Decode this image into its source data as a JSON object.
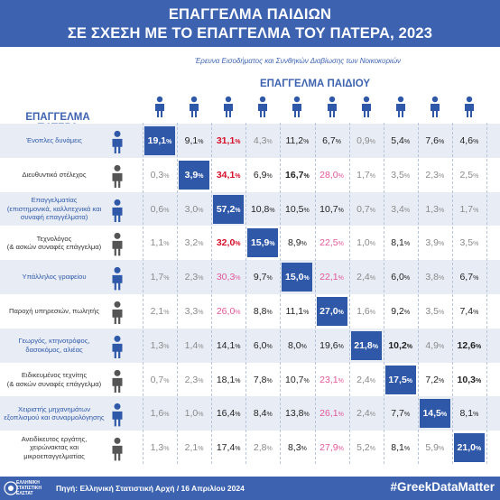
{
  "title": {
    "line1": "ΕΠΑΓΓΕΛΜΑ ΠΑΙΔΙΩΝ",
    "line2": "ΣΕ ΣΧΕΣΗ ΜΕ ΤΟ ΕΠΑΓΓΕΛΜΑ ΤΟΥ ΠΑΤΕΡΑ, 2023"
  },
  "subtitle": "Έρευνα Εισοδήματος και Συνθηκών Διαβίωσης των Νοικοκυριών",
  "column_header": "ΕΠΑΓΓΕΛΜΑ ΠΑΙΔΙΟΥ",
  "row_header": "ΕΠΑΓΓΕΛΜΑ ΠΑΤΕΡΑ",
  "pct_sign": "%",
  "footer": {
    "logo_line1": "ΕΛΛΗΝΙΚΗ",
    "logo_line2": "ΣΤΑΤΙΣΤΙΚΗ",
    "logo_line3": "ΕΛΣΤΑΤ",
    "source": "Πηγή: Ελληνική Στατιστική Αρχή  /  16 Απριλίου 2024",
    "hashtag": "#GreekDataMatter"
  },
  "colors": {
    "header_blue": "#3d63b0",
    "diagonal_blue": "#2f58a8",
    "pink": "#e2579a",
    "red": "#d6102a",
    "gray": "#8a8a8a",
    "band": "#e8edf5"
  },
  "column_icons": [
    "soldier-icon",
    "manager-icon",
    "professional-icon",
    "technician-icon",
    "clerk-icon",
    "service-worker-icon",
    "farmer-icon",
    "craft-worker-icon",
    "machine-operator-icon",
    "laborer-icon"
  ],
  "rows": [
    {
      "label": "Ένοπλες δυνάμεις",
      "sub": "",
      "blue": true,
      "icon": "soldier-icon"
    },
    {
      "label": "Διευθυντικό στέλεχος",
      "sub": "",
      "blue": false,
      "icon": "manager-icon"
    },
    {
      "label": "Επαγγελματίας",
      "sub": "(επιστημονικά, καλλιτεχνικά και συναφή επαγγέλματα)",
      "blue": true,
      "icon": "professional-icon"
    },
    {
      "label": "Τεχνολόγος",
      "sub": "(& ασκών συναφές επάγγελμα)",
      "blue": false,
      "icon": "technician-icon"
    },
    {
      "label": "Υπάλληλος γραφείου",
      "sub": "",
      "blue": true,
      "icon": "clerk-icon"
    },
    {
      "label": "Παροχή υπηρεσιών, πωλητής",
      "sub": "",
      "blue": false,
      "icon": "service-worker-icon"
    },
    {
      "label": "Γεωργός, κτηνοτρόφος, δασοκόμος, αλιέας",
      "sub": "",
      "blue": true,
      "icon": "farmer-icon"
    },
    {
      "label": "Ειδικευμένος τεχνίτης",
      "sub": "(& ασκών συναφές επάγγελμα)",
      "blue": false,
      "icon": "craft-worker-icon"
    },
    {
      "label": "Χειριστής μηχανημάτων εξοπλισμού και συναρμολόγησης",
      "sub": "",
      "blue": true,
      "icon": "machine-operator-icon"
    },
    {
      "label": "Ανειδίκευτος εργάτης, χειρώνακτας και μικροεπαγγελματίας",
      "sub": "",
      "blue": false,
      "icon": "laborer-icon"
    }
  ],
  "chart_data": {
    "type": "heatmap",
    "title": "ΕΠΑΓΓΕΛΜΑ ΠΑΙΔΙΩΝ ΣΕ ΣΧΕΣΗ ΜΕ ΤΟ ΕΠΑΓΓΕΛΜΑ ΤΟΥ ΠΑΤΕΡΑ, 2023",
    "xlabel": "ΕΠΑΓΓΕΛΜΑ ΠΑΙΔΙΟΥ",
    "ylabel": "ΕΠΑΓΓΕΛΜΑ ΠΑΤΕΡΑ",
    "unit": "%",
    "values": [
      [
        "19,1",
        "9,1",
        "31,1",
        "4,3",
        "11,2",
        "6,7",
        "0,9",
        "5,4",
        "7,6",
        "4,6"
      ],
      [
        "0,3",
        "3,9",
        "34,1",
        "6,9",
        "16,7",
        "28,0",
        "1,7",
        "3,5",
        "2,3",
        "2,5"
      ],
      [
        "0,6",
        "3,0",
        "57,2",
        "10,8",
        "10,5",
        "10,7",
        "0,7",
        "3,4",
        "1,3",
        "1,7"
      ],
      [
        "1,1",
        "3,2",
        "32,0",
        "15,9",
        "8,9",
        "22,5",
        "1,0",
        "8,1",
        "3,9",
        "3,5"
      ],
      [
        "1,7",
        "2,3",
        "30,3",
        "9,7",
        "15,0",
        "22,1",
        "2,4",
        "6,0",
        "3,8",
        "6,7"
      ],
      [
        "2,1",
        "3,3",
        "26,0",
        "8,8",
        "11,1",
        "27,0",
        "1,6",
        "9,2",
        "3,5",
        "7,4"
      ],
      [
        "1,3",
        "1,4",
        "14,1",
        "6,0",
        "8,0",
        "19,6",
        "21,8",
        "10,2",
        "4,9",
        "12,6"
      ],
      [
        "0,7",
        "2,3",
        "18,1",
        "7,8",
        "10,7",
        "23,1",
        "2,4",
        "17,5",
        "7,2",
        "10,3"
      ],
      [
        "1,6",
        "1,0",
        "16,4",
        "8,4",
        "13,8",
        "26,1",
        "2,4",
        "7,7",
        "14,5",
        "8,1"
      ],
      [
        "1,3",
        "2,1",
        "17,4",
        "2,8",
        "8,3",
        "27,9",
        "5,2",
        "8,1",
        "5,9",
        "21,0"
      ]
    ],
    "styles": [
      [
        "diag",
        "",
        "red",
        "gray",
        "",
        "",
        "gray",
        "",
        "",
        ""
      ],
      [
        "gray",
        "diag",
        "red",
        "",
        "bold",
        "pink",
        "gray",
        "gray",
        "gray",
        "gray"
      ],
      [
        "gray",
        "gray",
        "diag",
        "",
        "",
        "",
        "gray",
        "gray",
        "gray",
        "gray"
      ],
      [
        "gray",
        "gray",
        "red",
        "diag",
        "",
        "pink",
        "gray",
        "",
        "gray",
        "gray"
      ],
      [
        "gray",
        "gray",
        "pink",
        "",
        "diag",
        "pink",
        "gray",
        "",
        "gray",
        ""
      ],
      [
        "gray",
        "gray",
        "pink",
        "",
        "",
        "diag",
        "gray",
        "",
        "gray",
        ""
      ],
      [
        "gray",
        "gray",
        "",
        "",
        "",
        "",
        "diag",
        "bold",
        "gray",
        "bold"
      ],
      [
        "gray",
        "gray",
        "",
        "",
        "",
        "pink",
        "gray",
        "diag",
        "",
        "bold"
      ],
      [
        "gray",
        "gray",
        "",
        "",
        "",
        "pink",
        "gray",
        "",
        "diag",
        ""
      ],
      [
        "gray",
        "gray",
        "",
        "gray",
        "",
        "pink",
        "gray",
        "",
        "gray",
        "diag"
      ]
    ]
  }
}
